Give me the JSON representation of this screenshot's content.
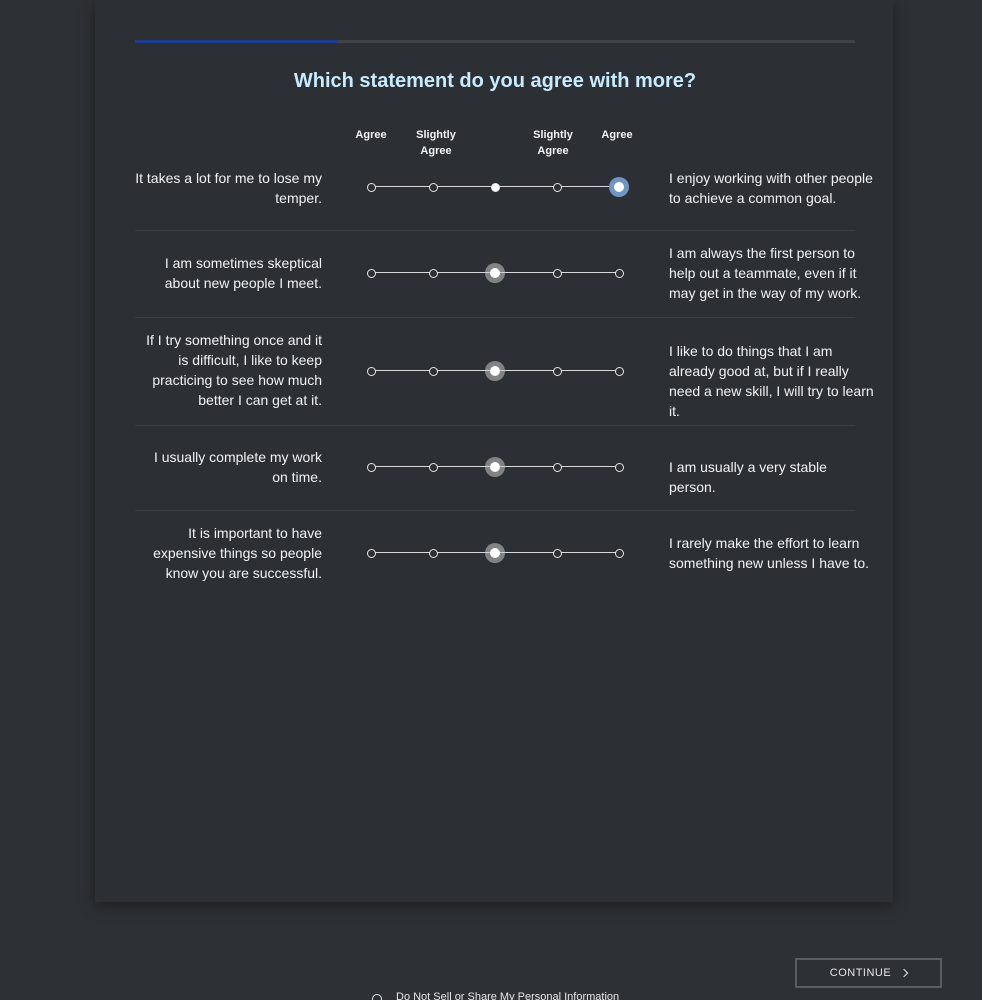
{
  "progress": {
    "fraction": 0.28
  },
  "question": "Which statement do you agree with more?",
  "scale_labels": [
    "Agree",
    "Slightly\nAgree",
    "",
    "Slightly\nAgree",
    "Agree"
  ],
  "rows": [
    {
      "left": "It takes a lot for me to lose my temper.",
      "right": "I enjoy working with other people to achieve a common goal.",
      "selected_index": 4
    },
    {
      "left": "I am sometimes skeptical about new people I meet.",
      "right": "I am always the first person to help out a teammate, even if it may get in the way of my work.",
      "selected_index": 2
    },
    {
      "left": "If I try something once and it is difficult, I like to keep practicing to see how much better I can get at it.",
      "right": "I like to do things that I am already good at, but if I really need a new skill, I will try to learn it.",
      "selected_index": 2
    },
    {
      "left": "I usually complete my work on time.",
      "right": "I am usually a very stable person.",
      "selected_index": 2
    },
    {
      "left": "It is important to have expensive things so people know you are successful.",
      "right": "I rarely make the effort to learn something new unless I have to.",
      "selected_index": 2
    }
  ],
  "continue_label": "CONTINUE",
  "footer": {
    "text": "Do Not Sell or Share My Personal Information",
    "icon": "location-pin-icon"
  },
  "colors": {
    "accent": "#6f95c2",
    "question": "#c7ebff",
    "progress": "#1d3d8f"
  }
}
